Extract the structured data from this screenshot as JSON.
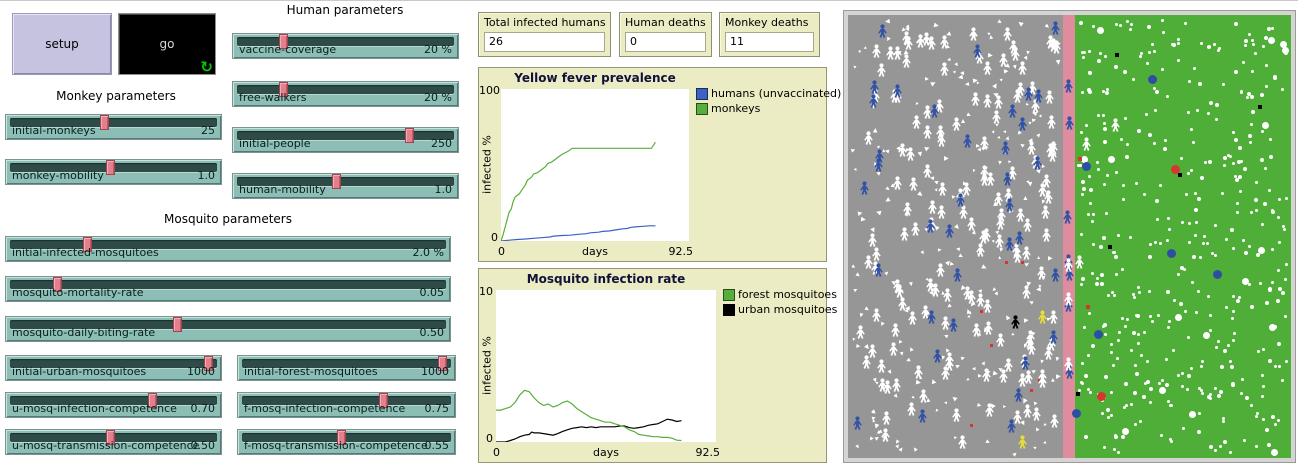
{
  "buttons": {
    "setup_label": "setup",
    "go_label": "go"
  },
  "icons": {
    "forever_icon": "↻"
  },
  "section_titles": {
    "human": "Human parameters",
    "monkey": "Monkey parameters",
    "mosquito": "Mosquito parameters"
  },
  "sliders": [
    {
      "id": "vaccine-coverage",
      "label": "vaccine-coverage",
      "value": "20 %",
      "frac": 0.2
    },
    {
      "id": "free-walkers",
      "label": "free-walkers",
      "value": "20 %",
      "frac": 0.2
    },
    {
      "id": "initial-people",
      "label": "initial-people",
      "value": "250",
      "frac": 0.8
    },
    {
      "id": "human-mobility",
      "label": "human-mobility",
      "value": "1.0",
      "frac": 0.45
    },
    {
      "id": "initial-monkeys",
      "label": "initial-monkeys",
      "value": "25",
      "frac": 0.45
    },
    {
      "id": "monkey-mobility",
      "label": "monkey-mobility",
      "value": "1.0",
      "frac": 0.48
    },
    {
      "id": "initial-infected-mosquitoes",
      "label": "initial-infected-mosquitoes",
      "value": "2.0 %",
      "frac": 0.17
    },
    {
      "id": "mosquito-mortality-rate",
      "label": "mosquito-mortality-rate",
      "value": "0.05",
      "frac": 0.1
    },
    {
      "id": "mosquito-daily-biting-rate",
      "label": "mosquito-daily-biting-rate",
      "value": "0.50",
      "frac": 0.38
    },
    {
      "id": "initial-urban-mosquitoes",
      "label": "initial-urban-mosquitoes",
      "value": "1000",
      "frac": 0.97
    },
    {
      "id": "initial-forest-mosquitoes",
      "label": "initial-forest-mosquitoes",
      "value": "1000",
      "frac": 0.97
    },
    {
      "id": "u-mosq-infection-competence",
      "label": "u-mosq-infection-competence",
      "value": "0.70",
      "frac": 0.69
    },
    {
      "id": "f-mosq-infection-competence",
      "label": "f-mosq-infection-competence",
      "value": "0.75",
      "frac": 0.68
    },
    {
      "id": "u-mosq-transmission-competence",
      "label": "u-mosq-transmission-competence",
      "value": "0.50",
      "frac": 0.48
    },
    {
      "id": "f-mosq-transmission-competence",
      "label": "f-mosq-transmission-competence",
      "value": "0.55",
      "frac": 0.47
    }
  ],
  "monitors": [
    {
      "label": "Total infected humans",
      "value": "26"
    },
    {
      "label": "Human deaths",
      "value": "0"
    },
    {
      "label": "Monkey deaths",
      "value": "11"
    }
  ],
  "chart_data": [
    {
      "type": "line",
      "title": "Yellow fever prevalence",
      "xlabel": "days",
      "ylabel": "infected %",
      "xlim": [
        0,
        92.5
      ],
      "ylim": [
        0,
        100
      ],
      "x_ticks": [
        "0",
        "92.5"
      ],
      "y_ticks": [
        "0",
        "100"
      ],
      "grid": false,
      "legend_position": "right",
      "series": [
        {
          "name": "humans (unvaccinated)",
          "color": "#3c62c6",
          "points": [
            [
              0,
              0
            ],
            [
              4,
              0.5
            ],
            [
              8,
              1
            ],
            [
              12,
              1.3
            ],
            [
              16,
              1.8
            ],
            [
              20,
              2.2
            ],
            [
              24,
              2.6
            ],
            [
              26,
              3.2
            ],
            [
              30,
              3.6
            ],
            [
              34,
              3.8
            ],
            [
              38,
              4.4
            ],
            [
              42,
              4.8
            ],
            [
              44,
              5.4
            ],
            [
              48,
              5.8
            ],
            [
              50,
              6.3
            ],
            [
              53,
              6.6
            ],
            [
              55,
              7
            ],
            [
              58,
              7.6
            ],
            [
              60,
              8
            ],
            [
              62,
              8.2
            ],
            [
              64,
              9
            ],
            [
              66,
              9.3
            ],
            [
              70,
              9.7
            ],
            [
              73,
              10
            ],
            [
              76,
              10
            ]
          ]
        },
        {
          "name": "monkeys",
          "color": "#58ae3c",
          "points": [
            [
              0,
              0
            ],
            [
              1,
              4
            ],
            [
              2,
              9
            ],
            [
              3,
              14
            ],
            [
              4,
              19
            ],
            [
              5,
              21
            ],
            [
              6,
              26
            ],
            [
              7,
              29
            ],
            [
              9,
              31
            ],
            [
              10,
              33
            ],
            [
              12,
              37
            ],
            [
              13,
              40
            ],
            [
              15,
              42
            ],
            [
              16,
              44
            ],
            [
              18,
              45
            ],
            [
              20,
              47
            ],
            [
              22,
              49
            ],
            [
              23,
              51
            ],
            [
              25,
              52
            ],
            [
              27,
              54
            ],
            [
              28,
              55
            ],
            [
              30,
              57
            ],
            [
              33,
              59
            ],
            [
              35,
              61
            ],
            [
              73,
              61
            ],
            [
              74,
              61
            ],
            [
              76,
              65
            ]
          ]
        }
      ]
    },
    {
      "type": "line",
      "title": "Mosquito infection rate",
      "xlabel": "days",
      "ylabel": "infected %",
      "xlim": [
        0,
        92.5
      ],
      "ylim": [
        0,
        10
      ],
      "x_ticks": [
        "0",
        "92.5"
      ],
      "y_ticks": [
        "0",
        "10"
      ],
      "grid": false,
      "legend_position": "right",
      "series": [
        {
          "name": "forest mosquitoes",
          "color": "#58ae3c",
          "points": [
            [
              0,
              2.1
            ],
            [
              2,
              2.1
            ],
            [
              4,
              2.2
            ],
            [
              6,
              2.3
            ],
            [
              8,
              2.6
            ],
            [
              10,
              3.1
            ],
            [
              12,
              3.4
            ],
            [
              14,
              3.3
            ],
            [
              16,
              2.9
            ],
            [
              18,
              2.6
            ],
            [
              20,
              2.4
            ],
            [
              22,
              2.5
            ],
            [
              24,
              2.3
            ],
            [
              26,
              2.4
            ],
            [
              28,
              2.6
            ],
            [
              30,
              2.7
            ],
            [
              32,
              2.5
            ],
            [
              34,
              2.2
            ],
            [
              36,
              2.0
            ],
            [
              38,
              1.8
            ],
            [
              40,
              1.6
            ],
            [
              42,
              1.5
            ],
            [
              44,
              1.4
            ],
            [
              46,
              1.3
            ],
            [
              48,
              1.3
            ],
            [
              50,
              1.2
            ],
            [
              52,
              1.1
            ],
            [
              54,
              1.0
            ],
            [
              56,
              0.8
            ],
            [
              58,
              0.7
            ],
            [
              60,
              0.5
            ],
            [
              62,
              0.45
            ],
            [
              64,
              0.4
            ],
            [
              66,
              0.35
            ],
            [
              68,
              0.35
            ],
            [
              70,
              0.3
            ],
            [
              72,
              0.3
            ],
            [
              74,
              0.25
            ],
            [
              76,
              0.12
            ],
            [
              78,
              0.1
            ]
          ]
        },
        {
          "name": "urban mosquitoes",
          "color": "#000000",
          "points": [
            [
              0,
              0
            ],
            [
              4,
              0
            ],
            [
              6,
              0.1
            ],
            [
              8,
              0.2
            ],
            [
              10,
              0.35
            ],
            [
              12,
              0.45
            ],
            [
              14,
              0.5
            ],
            [
              15,
              0.65
            ],
            [
              16,
              0.6
            ],
            [
              18,
              0.6
            ],
            [
              20,
              0.55
            ],
            [
              22,
              0.5
            ],
            [
              24,
              0.45
            ],
            [
              26,
              0.55
            ],
            [
              28,
              0.7
            ],
            [
              30,
              0.8
            ],
            [
              32,
              0.9
            ],
            [
              34,
              0.95
            ],
            [
              36,
              1.0
            ],
            [
              38,
              0.95
            ],
            [
              40,
              1.0
            ],
            [
              42,
              0.95
            ],
            [
              44,
              1.0
            ],
            [
              46,
              1.0
            ],
            [
              48,
              1.0
            ],
            [
              50,
              1.0
            ],
            [
              52,
              1.05
            ],
            [
              54,
              1.05
            ],
            [
              56,
              0.95
            ],
            [
              58,
              0.9
            ],
            [
              60,
              0.95
            ],
            [
              62,
              1.0
            ],
            [
              64,
              1.1
            ],
            [
              66,
              1.15
            ],
            [
              68,
              1.2
            ],
            [
              70,
              1.35
            ],
            [
              72,
              1.5
            ],
            [
              74,
              1.45
            ],
            [
              76,
              1.35
            ],
            [
              78,
              1.4
            ]
          ]
        }
      ]
    }
  ],
  "world": {
    "regions": {
      "urban_color": "#969696",
      "corridor_color": "#de8c9e",
      "forest_color": "#4fae38"
    },
    "agent_colors": {
      "human_white": "#ffffff",
      "human_blue": "#3152a6",
      "human_yellow": "#e6dc3a",
      "human_black": "#000000",
      "monkey_blue": "#2c4fa4",
      "infected_red": "#d8352e",
      "mosquito_white": "#ffffff",
      "marker_black": "#000000"
    },
    "counts": {
      "urban_people_white": 150,
      "urban_people_blue": 36,
      "urban_mosquito_dots": 240,
      "urban_red_marks": 7,
      "corridor_people_blue": 7,
      "corridor_people_white": 3,
      "forest_mosquito_dots": 430
    },
    "urban_specials": {
      "black_person": [
        162,
        300
      ],
      "yellow_people": [
        [
          189,
          295
        ],
        [
          169,
          420
        ]
      ]
    },
    "forest_specials": {
      "monkeys_blue": [
        [
          234,
          147
        ],
        [
          319,
          234
        ],
        [
          365,
          255
        ],
        [
          224,
          394
        ],
        [
          300,
          60
        ],
        [
          246,
          315
        ]
      ],
      "monkeys_red": [
        [
          249,
          377
        ],
        [
          323,
          150
        ]
      ],
      "black_dots": [
        [
          267,
          38
        ],
        [
          228,
          377
        ],
        [
          330,
          158
        ],
        [
          260,
          230
        ],
        [
          410,
          90
        ]
      ],
      "red_small": [
        [
          230,
          142
        ],
        [
          238,
          290
        ]
      ],
      "people_white": [
        [
          262,
          103
        ],
        [
          233,
          122
        ],
        [
          226,
          240
        ]
      ]
    }
  }
}
